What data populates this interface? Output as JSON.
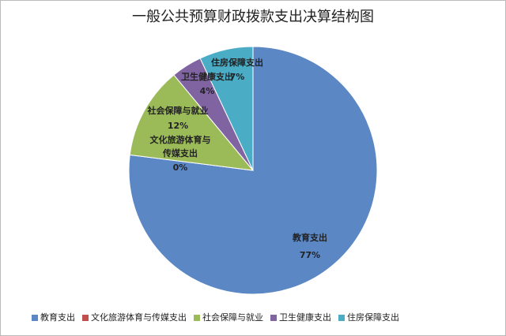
{
  "chart_data": {
    "type": "pie",
    "title": "一般公共预算财政拨款支出决算结构图",
    "categories": [
      "教育支出",
      "文化旅游体育与传媒支出",
      "社会保障与就业",
      "卫生健康支出",
      "住房保障支出"
    ],
    "values": [
      77,
      0,
      12,
      4,
      7
    ],
    "value_labels": [
      "77%",
      "0%",
      "12%",
      "4%",
      "7%"
    ],
    "colors": [
      "#5b87c5",
      "#c0504d",
      "#9bbb59",
      "#8064a2",
      "#4bacc6"
    ],
    "legend": "bottom"
  }
}
